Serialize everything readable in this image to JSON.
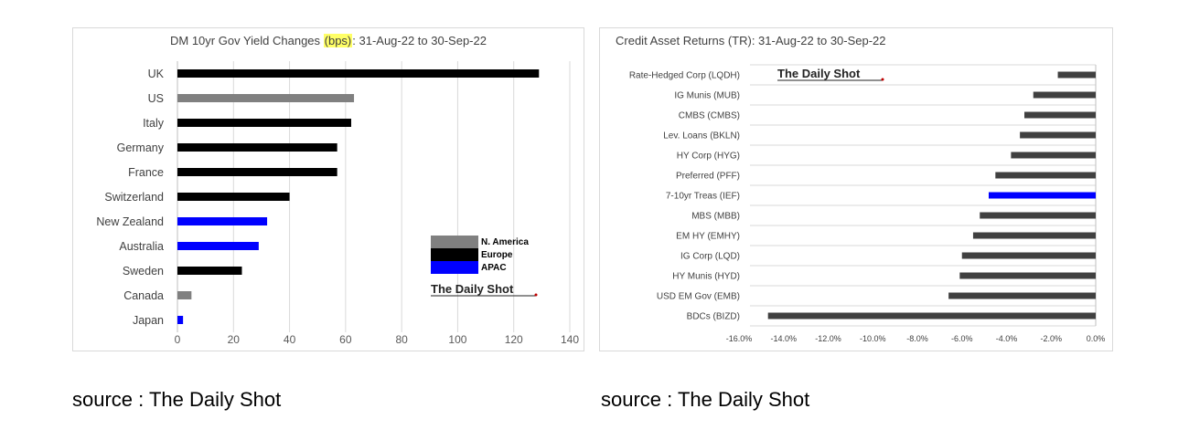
{
  "colors": {
    "north_america": "#808080",
    "europe": "#000000",
    "apac": "#0000ff",
    "credit_bar": "#404040",
    "credit_highlight": "#0000ff"
  },
  "left": {
    "title_pre": "DM 10yr Gov Yield Changes ",
    "title_hl": "(bps)",
    "title_post": ": 31-Aug-22 to 30-Sep-22",
    "watermark": "The Daily Shot",
    "source": "source : The Daily Shot"
  },
  "right": {
    "title": "Credit Asset Returns (TR): 31-Aug-22 to 30-Sep-22",
    "watermark": "The Daily Shot",
    "source": "source : The Daily Shot"
  },
  "chart_data": [
    {
      "type": "bar",
      "orientation": "horizontal",
      "title": "DM 10yr Gov Yield Changes (bps): 31-Aug-22 to 30-Sep-22",
      "categories": [
        "UK",
        "US",
        "Italy",
        "Germany",
        "France",
        "Switzerland",
        "New Zealand",
        "Australia",
        "Sweden",
        "Canada",
        "Japan"
      ],
      "values": [
        129,
        63,
        62,
        57,
        57,
        40,
        32,
        29,
        23,
        5,
        2
      ],
      "groups": [
        "Europe",
        "N. America",
        "Europe",
        "Europe",
        "Europe",
        "Europe",
        "APAC",
        "APAC",
        "Europe",
        "N. America",
        "APAC"
      ],
      "legend": [
        {
          "name": "N. America",
          "color": "#808080"
        },
        {
          "name": "Europe",
          "color": "#000000"
        },
        {
          "name": "APAC",
          "color": "#0000ff"
        }
      ],
      "legend_position": "bottom-right",
      "xlim": [
        0,
        140
      ],
      "xticks": [
        0,
        20,
        40,
        60,
        80,
        100,
        120,
        140
      ],
      "xtick_labels": [
        "0",
        "20",
        "40",
        "60",
        "80",
        "100",
        "120",
        "140"
      ],
      "grid": true
    },
    {
      "type": "bar",
      "orientation": "horizontal",
      "title": "Credit Asset Returns (TR): 31-Aug-22 to 30-Sep-22",
      "categories": [
        "Rate-Hedged Corp (LQDH)",
        "IG Munis (MUB)",
        "CMBS (CMBS)",
        "Lev. Loans (BKLN)",
        "HY Corp (HYG)",
        "Preferred (PFF)",
        "7-10yr Treas (IEF)",
        "MBS (MBB)",
        "EM HY (EMHY)",
        "IG Corp (LQD)",
        "HY Munis (HYD)",
        "USD EM Gov (EMB)",
        "BDCs (BIZD)"
      ],
      "values": [
        -1.7,
        -2.8,
        -3.2,
        -3.4,
        -3.8,
        -4.5,
        -4.8,
        -5.2,
        -5.5,
        -6.0,
        -6.1,
        -6.6,
        -14.7
      ],
      "highlight": "7-10yr Treas (IEF)",
      "xlim": [
        -16.0,
        0.0
      ],
      "xticks": [
        -16,
        -14,
        -12,
        -10,
        -8,
        -6,
        -4,
        -2,
        0
      ],
      "xtick_labels": [
        "-16.0%",
        "-14.0%",
        "-12.0%",
        "-10.0%",
        "-8.0%",
        "-6.0%",
        "-4.0%",
        "-2.0%",
        "0.0%"
      ],
      "grid": true
    }
  ]
}
